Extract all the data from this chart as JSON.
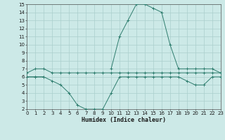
{
  "xlabel": "Humidex (Indice chaleur)",
  "x": [
    0,
    1,
    2,
    3,
    4,
    5,
    6,
    7,
    8,
    9,
    10,
    11,
    12,
    13,
    14,
    15,
    16,
    17,
    18,
    19,
    20,
    21,
    22,
    23
  ],
  "line1": [
    6,
    6,
    6,
    null,
    null,
    null,
    null,
    null,
    null,
    null,
    7,
    11,
    13,
    15,
    15,
    14.5,
    14,
    10,
    7,
    7,
    7,
    7,
    7,
    6.5
  ],
  "line2": [
    6.5,
    7,
    7,
    6.5,
    6.5,
    6.5,
    6.5,
    6.5,
    6.5,
    6.5,
    6.5,
    6.5,
    6.5,
    6.5,
    6.5,
    6.5,
    6.5,
    6.5,
    6.5,
    6.5,
    6.5,
    6.5,
    6.5,
    6.5
  ],
  "line3": [
    6,
    6,
    6,
    5.5,
    5,
    4,
    2.5,
    2,
    2,
    2,
    4,
    6,
    6,
    6,
    6,
    6,
    6,
    6,
    6,
    5.5,
    5,
    5,
    6,
    6
  ],
  "line_color": "#2e7d6e",
  "bg_color": "#cce9e7",
  "grid_color": "#aacfcc",
  "xlim": [
    0,
    23
  ],
  "ylim": [
    2,
    15
  ],
  "yticks": [
    2,
    3,
    4,
    5,
    6,
    7,
    8,
    9,
    10,
    11,
    12,
    13,
    14,
    15
  ],
  "xticks": [
    0,
    1,
    2,
    3,
    4,
    5,
    6,
    7,
    8,
    9,
    10,
    11,
    12,
    13,
    14,
    15,
    16,
    17,
    18,
    19,
    20,
    21,
    22,
    23
  ],
  "tick_fontsize": 5,
  "xlabel_fontsize": 6
}
